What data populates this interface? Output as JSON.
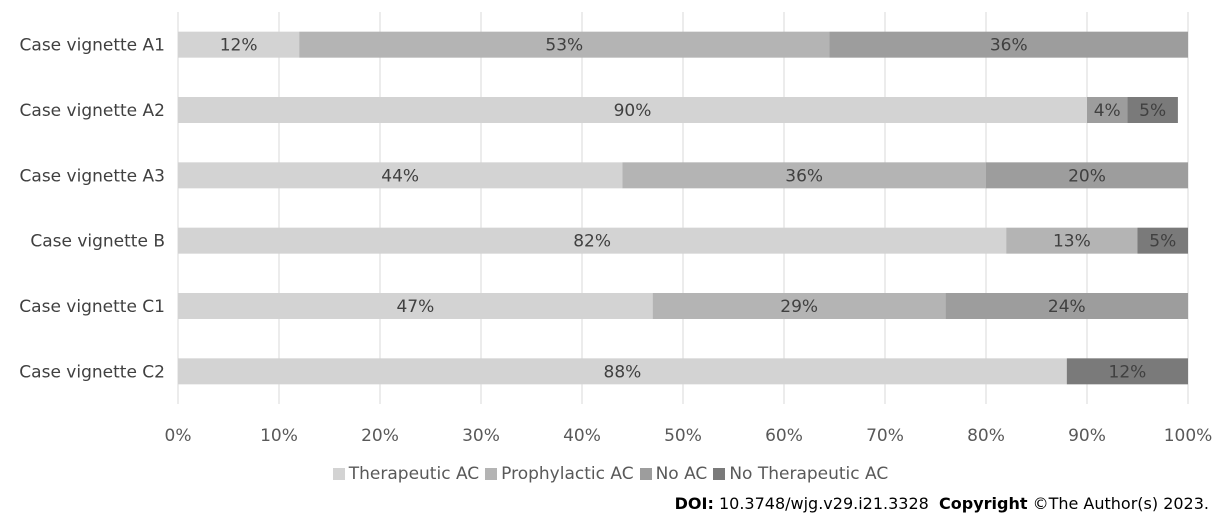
{
  "chart_data": {
    "type": "bar",
    "orientation": "horizontal",
    "stacked": true,
    "categories": [
      "Case vignette A1",
      "Case vignette A2",
      "Case vignette A3",
      "Case vignette B",
      "Case vignette C1",
      "Case vignette C2"
    ],
    "series": [
      {
        "name": "Therapeutic AC",
        "color": "#d3d3d3",
        "values": [
          12,
          90,
          44,
          82,
          47,
          88
        ],
        "labels": [
          "12%",
          "90%",
          "44%",
          "82%",
          "47%",
          "88%"
        ]
      },
      {
        "name": "Prophylactic AC",
        "color": "#b4b4b4",
        "values": [
          52.5,
          0,
          36,
          13,
          29,
          0
        ],
        "labels": [
          "53%",
          "",
          "36%",
          "13%",
          "29%",
          ""
        ]
      },
      {
        "name": "No AC",
        "color": "#9d9d9d",
        "values": [
          35.5,
          4,
          20,
          0,
          24,
          0
        ],
        "labels": [
          "36%",
          "4%",
          "20%",
          "",
          "24%",
          ""
        ]
      },
      {
        "name": "No Therapeutic AC",
        "color": "#7a7a7a",
        "values": [
          0,
          5,
          0,
          5,
          0,
          12
        ],
        "labels": [
          "",
          "5%",
          "",
          "5%",
          "",
          "12%"
        ]
      }
    ],
    "x_ticks": [
      "0%",
      "10%",
      "20%",
      "30%",
      "40%",
      "50%",
      "60%",
      "70%",
      "80%",
      "90%",
      "100%"
    ],
    "xlim": [
      0,
      100
    ],
    "grid": true,
    "legend_position": "bottom"
  },
  "footer": {
    "doi_label": "DOI:",
    "doi_value": "10.3748/wjg.v29.i21.3328",
    "copyright_label": "Copyright",
    "copyright_value": "©The Author(s) 2023."
  }
}
